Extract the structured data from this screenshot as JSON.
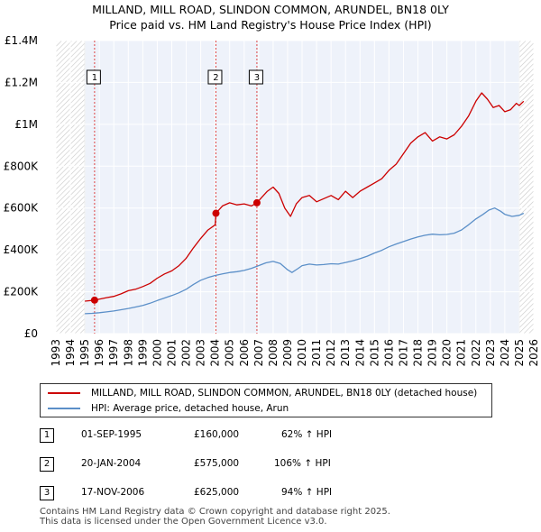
{
  "title_line1": "MILLAND, MILL ROAD, SLINDON COMMON, ARUNDEL, BN18 0LY",
  "title_line2": "Price paid vs. HM Land Registry's House Price Index (HPI)",
  "chart_data": {
    "type": "line",
    "title": "MILLAND, MILL ROAD, SLINDON COMMON, ARUNDEL, BN18 0LY — Price paid vs. HM Land Registry's House Price Index (HPI)",
    "xlim": [
      1993,
      2026
    ],
    "ylim": [
      0,
      1400000
    ],
    "x_ticks": [
      1993,
      1994,
      1995,
      1996,
      1997,
      1998,
      1999,
      2000,
      2001,
      2002,
      2003,
      2004,
      2005,
      2006,
      2007,
      2008,
      2009,
      2010,
      2011,
      2012,
      2013,
      2014,
      2015,
      2016,
      2017,
      2018,
      2019,
      2020,
      2021,
      2022,
      2023,
      2024,
      2025,
      2026
    ],
    "y_ticks": [
      {
        "value": 0,
        "label": "£0"
      },
      {
        "value": 200000,
        "label": "£200K"
      },
      {
        "value": 400000,
        "label": "£400K"
      },
      {
        "value": 600000,
        "label": "£600K"
      },
      {
        "value": 800000,
        "label": "£800K"
      },
      {
        "value": 1000000,
        "label": "£1M"
      },
      {
        "value": 1200000,
        "label": "£1.2M"
      },
      {
        "value": 1400000,
        "label": "£1.4M"
      }
    ],
    "hatched_ranges": [
      [
        1993,
        1995
      ],
      [
        2025,
        2026
      ]
    ],
    "series": [
      {
        "name": "MILLAND, MILL ROAD, SLINDON COMMON, ARUNDEL, BN18 0LY (detached house)",
        "color": "#cc0000",
        "x": [
          1995.0,
          1995.67,
          1996.0,
          1996.5,
          1997.0,
          1997.5,
          1998.0,
          1998.5,
          1999.0,
          1999.5,
          2000.0,
          2000.5,
          2001.0,
          2001.5,
          2002.0,
          2002.5,
          2003.0,
          2003.5,
          2004.0,
          2004.05,
          2004.5,
          2005.0,
          2005.5,
          2006.0,
          2006.5,
          2006.88,
          2007.2,
          2007.6,
          2008.0,
          2008.4,
          2008.8,
          2009.2,
          2009.6,
          2010.0,
          2010.5,
          2011.0,
          2011.5,
          2012.0,
          2012.5,
          2013.0,
          2013.5,
          2014.0,
          2014.5,
          2015.0,
          2015.5,
          2016.0,
          2016.5,
          2017.0,
          2017.5,
          2018.0,
          2018.5,
          2019.0,
          2019.5,
          2020.0,
          2020.5,
          2021.0,
          2021.5,
          2022.0,
          2022.4,
          2022.8,
          2023.2,
          2023.6,
          2024.0,
          2024.4,
          2024.8,
          2025.0,
          2025.3
        ],
        "values": [
          155000,
          160000,
          165000,
          172000,
          178000,
          190000,
          205000,
          212000,
          225000,
          240000,
          265000,
          285000,
          300000,
          325000,
          360000,
          410000,
          455000,
          495000,
          520000,
          575000,
          610000,
          625000,
          615000,
          620000,
          610000,
          625000,
          650000,
          680000,
          700000,
          670000,
          600000,
          560000,
          620000,
          650000,
          660000,
          630000,
          645000,
          660000,
          640000,
          680000,
          650000,
          680000,
          700000,
          720000,
          740000,
          780000,
          810000,
          860000,
          910000,
          940000,
          960000,
          920000,
          940000,
          930000,
          950000,
          990000,
          1040000,
          1110000,
          1150000,
          1120000,
          1080000,
          1090000,
          1060000,
          1070000,
          1100000,
          1090000,
          1110000
        ]
      },
      {
        "name": "HPI: Average price, detached house, Arun",
        "color": "#5b8fc8",
        "x": [
          1995.0,
          1995.5,
          1996.0,
          1996.5,
          1997.0,
          1997.5,
          1998.0,
          1998.5,
          1999.0,
          1999.5,
          2000.0,
          2000.5,
          2001.0,
          2001.5,
          2002.0,
          2002.5,
          2003.0,
          2003.5,
          2004.0,
          2004.5,
          2005.0,
          2005.5,
          2006.0,
          2006.5,
          2007.0,
          2007.5,
          2008.0,
          2008.5,
          2009.0,
          2009.3,
          2009.7,
          2010.0,
          2010.5,
          2011.0,
          2011.5,
          2012.0,
          2012.5,
          2013.0,
          2013.5,
          2014.0,
          2014.5,
          2015.0,
          2015.5,
          2016.0,
          2016.5,
          2017.0,
          2017.5,
          2018.0,
          2018.5,
          2019.0,
          2019.5,
          2020.0,
          2020.5,
          2021.0,
          2021.5,
          2022.0,
          2022.5,
          2022.9,
          2023.3,
          2023.7,
          2024.0,
          2024.5,
          2025.0,
          2025.3
        ],
        "values": [
          95000,
          97000,
          100000,
          104000,
          108000,
          114000,
          120000,
          127000,
          135000,
          145000,
          158000,
          170000,
          182000,
          195000,
          212000,
          235000,
          255000,
          268000,
          278000,
          285000,
          292000,
          296000,
          302000,
          312000,
          325000,
          338000,
          345000,
          335000,
          305000,
          292000,
          310000,
          325000,
          332000,
          328000,
          330000,
          334000,
          332000,
          340000,
          348000,
          358000,
          370000,
          385000,
          398000,
          415000,
          428000,
          440000,
          452000,
          462000,
          470000,
          475000,
          472000,
          474000,
          480000,
          495000,
          520000,
          548000,
          570000,
          590000,
          600000,
          585000,
          570000,
          560000,
          565000,
          575000
        ]
      }
    ],
    "transactions": [
      {
        "num": "1",
        "date": "01-SEP-1995",
        "price": "£160,000",
        "hpi": "62% ↑ HPI",
        "x": 1995.67,
        "y": 160000
      },
      {
        "num": "2",
        "date": "20-JAN-2004",
        "price": "£575,000",
        "hpi": "106% ↑ HPI",
        "x": 2004.05,
        "y": 575000
      },
      {
        "num": "3",
        "date": "17-NOV-2006",
        "price": "£625,000",
        "hpi": "94% ↑ HPI",
        "x": 2006.88,
        "y": 625000
      }
    ]
  },
  "legend": {
    "red_label": "MILLAND, MILL ROAD, SLINDON COMMON, ARUNDEL, BN18 0LY (detached house)",
    "blue_label": "HPI: Average price, detached house, Arun",
    "red_color": "#cc0000",
    "blue_color": "#5b8fc8"
  },
  "footer": {
    "line1": "Contains HM Land Registry data © Crown copyright and database right 2025.",
    "line2": "This data is licensed under the Open Government Licence v3.0."
  }
}
